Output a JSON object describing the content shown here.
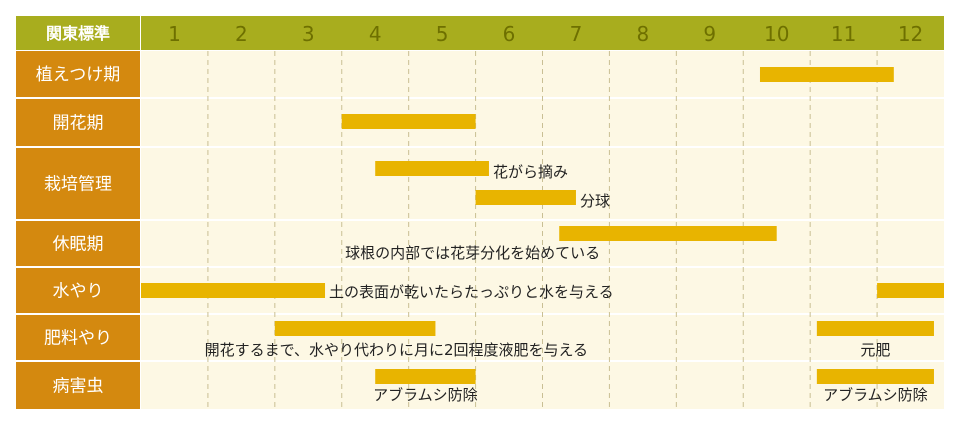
{
  "chart_data": {
    "type": "gantt",
    "corner_label": "関東標準",
    "months": [
      "1",
      "2",
      "3",
      "4",
      "5",
      "6",
      "7",
      "8",
      "9",
      "10",
      "11",
      "12"
    ],
    "colors": {
      "header_bg": "#a8ad1e",
      "header_text": "#6e7000",
      "label_bg": "#d4890f",
      "label_text": "#ffffff",
      "grid_bg": "#fdf8e4",
      "bar": "#e8b400",
      "dash": "#c9bf94",
      "divider": "#ffffff",
      "note_text": "#222222"
    },
    "rows": [
      {
        "label": "植えつけ期",
        "bars": [
          {
            "start": 9.25,
            "end": 11.25
          }
        ]
      },
      {
        "label": "開花期",
        "bars": [
          {
            "start": 3.0,
            "end": 5.0
          }
        ]
      },
      {
        "label": "栽培管理",
        "bars": [
          {
            "start": 3.5,
            "end": 5.2,
            "note": "花がら摘み"
          },
          {
            "start": 5.0,
            "end": 6.5,
            "note": "分球"
          }
        ]
      },
      {
        "label": "休眠期",
        "bars": [
          {
            "start": 6.25,
            "end": 9.5,
            "note": "球根の内部では花芽分化を始めている"
          }
        ]
      },
      {
        "label": "水やり",
        "bars": [
          {
            "start": 0.0,
            "end": 2.75,
            "note": "土の表面が乾いたらたっぷりと水を与える"
          },
          {
            "start": 11.0,
            "end": 12.0
          }
        ]
      },
      {
        "label": "肥料やり",
        "bars": [
          {
            "start": 2.0,
            "end": 4.4,
            "note": "開花するまで、水やり代わりに月に2回程度液肥を与える"
          },
          {
            "start": 10.1,
            "end": 11.85,
            "note": "元肥"
          }
        ]
      },
      {
        "label": "病害虫",
        "bars": [
          {
            "start": 3.5,
            "end": 5.0,
            "note": "アブラムシ防除"
          },
          {
            "start": 10.1,
            "end": 11.85,
            "note": "アブラムシ防除"
          }
        ]
      }
    ]
  }
}
